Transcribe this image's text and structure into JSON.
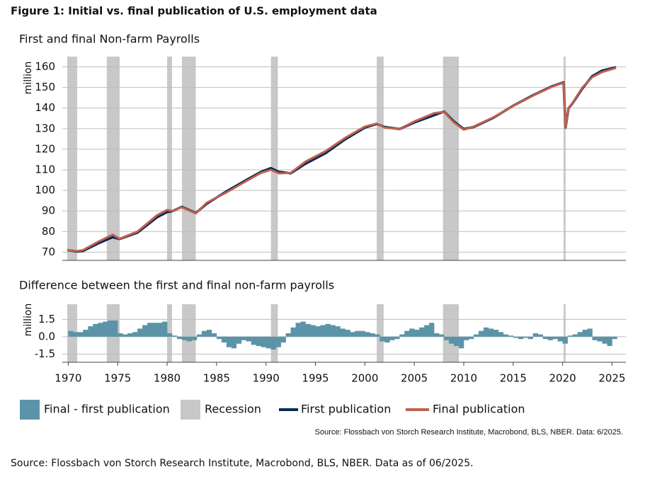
{
  "title": "Figure 1: Initial vs. final publication of U.S. employment data",
  "recessions": {
    "name": "Recession",
    "color": "#c8c8c8",
    "periods": [
      [
        1969.9,
        1970.9
      ],
      [
        1973.9,
        1975.2
      ],
      [
        1980.0,
        1980.5
      ],
      [
        1981.5,
        1982.9
      ],
      [
        1990.5,
        1991.2
      ],
      [
        2001.2,
        2001.9
      ],
      [
        2007.9,
        2009.5
      ],
      [
        2020.1,
        2020.3
      ]
    ]
  },
  "chart_data": [
    {
      "type": "line",
      "title": "First and final Non-farm Payrolls",
      "ylabel": "million",
      "x": [
        1969.9,
        1970.9,
        1971.5,
        1973,
        1974.5,
        1975.2,
        1977,
        1979,
        1980,
        1980.5,
        1981.5,
        1982.9,
        1984,
        1986,
        1988,
        1989.5,
        1990.5,
        1991.3,
        1992.5,
        1994,
        1996,
        1998,
        2000,
        2001.2,
        2002,
        2003.5,
        2005,
        2007,
        2008,
        2009,
        2010,
        2011,
        2013,
        2015,
        2017,
        2019,
        2020.1,
        2020.3,
        2020.6,
        2021,
        2022,
        2023,
        2024,
        2025.4
      ],
      "series": [
        {
          "name": "First publication",
          "color": "#0b2a55",
          "values": [
            71,
            70.3,
            70.6,
            74.2,
            77.3,
            76.4,
            79.5,
            87,
            89.5,
            89.9,
            92,
            89,
            93.5,
            99.5,
            105,
            109,
            110.8,
            109,
            108.3,
            113,
            118,
            124.8,
            130.5,
            132.3,
            130.8,
            129.8,
            133,
            136.5,
            138.3,
            133.5,
            129.8,
            130.8,
            135.3,
            141.1,
            146.2,
            150.7,
            152.5,
            130.5,
            139.9,
            142.3,
            149.5,
            155.5,
            158.2,
            159.8
          ]
        },
        {
          "name": "Final publication",
          "color": "#c0604f",
          "values": [
            71,
            70.5,
            71,
            75,
            78.5,
            76.5,
            80,
            88,
            90.5,
            90,
            91.8,
            88.8,
            94,
            99,
            104.5,
            108.5,
            110,
            108.3,
            108.5,
            114,
            119,
            125.5,
            131,
            132.5,
            130.5,
            129.8,
            133.5,
            137.5,
            138.2,
            133,
            129.5,
            131,
            135.5,
            141,
            146,
            150.5,
            152.3,
            130.5,
            140,
            142.5,
            150,
            155,
            157.5,
            159.5
          ]
        }
      ],
      "xlim": [
        1969.4,
        2026.4
      ],
      "ylim": [
        66,
        165
      ],
      "yticks": [
        70,
        80,
        90,
        100,
        110,
        120,
        130,
        140,
        150,
        160
      ],
      "grid": true
    },
    {
      "type": "bar",
      "title": "Difference between the first and final non-farm payrolls",
      "ylabel": "million",
      "x": [
        1970,
        1970.5,
        1971,
        1971.5,
        1972,
        1972.5,
        1973,
        1973.5,
        1974,
        1974.5,
        1975,
        1975.5,
        1976,
        1976.5,
        1977,
        1977.5,
        1978,
        1978.5,
        1979,
        1979.5,
        1980,
        1980.5,
        1981,
        1981.5,
        1982,
        1982.5,
        1983,
        1983.5,
        1984,
        1984.5,
        1985,
        1985.5,
        1986,
        1986.5,
        1987,
        1987.5,
        1988,
        1988.5,
        1989,
        1989.5,
        1990,
        1990.5,
        1991,
        1991.5,
        1992,
        1992.5,
        1993,
        1993.5,
        1994,
        1994.5,
        1995,
        1995.5,
        1996,
        1996.5,
        1997,
        1997.5,
        1998,
        1998.5,
        1999,
        1999.5,
        2000,
        2000.5,
        2001,
        2001.5,
        2002,
        2002.5,
        2003,
        2003.5,
        2004,
        2004.5,
        2005,
        2005.5,
        2006,
        2006.5,
        2007,
        2007.5,
        2008,
        2008.5,
        2009,
        2009.5,
        2010,
        2010.5,
        2011,
        2011.5,
        2012,
        2012.5,
        2013,
        2013.5,
        2014,
        2014.5,
        2015,
        2015.5,
        2016,
        2016.5,
        2017,
        2017.5,
        2018,
        2018.5,
        2019,
        2019.5,
        2020,
        2020.5,
        2021,
        2021.5,
        2022,
        2022.5,
        2023,
        2023.5,
        2024,
        2024.5,
        2025
      ],
      "series": [
        {
          "name": "Final - first publication",
          "color": "#5b94a8",
          "values": [
            0.5,
            0.4,
            0.4,
            0.6,
            0.9,
            1.1,
            1.2,
            1.3,
            1.4,
            1.4,
            0.3,
            0.2,
            0.3,
            0.4,
            0.7,
            1.0,
            1.2,
            1.2,
            1.2,
            1.3,
            0.3,
            0.1,
            -0.2,
            -0.3,
            -0.4,
            -0.3,
            0.2,
            0.5,
            0.6,
            0.3,
            -0.2,
            -0.5,
            -0.9,
            -1.0,
            -0.6,
            -0.3,
            -0.4,
            -0.7,
            -0.8,
            -0.9,
            -1.0,
            -1.1,
            -0.9,
            -0.5,
            0.3,
            0.8,
            1.2,
            1.3,
            1.1,
            1.0,
            0.9,
            1.0,
            1.1,
            1.0,
            0.9,
            0.7,
            0.6,
            0.4,
            0.5,
            0.5,
            0.4,
            0.3,
            0.2,
            -0.4,
            -0.5,
            -0.3,
            -0.2,
            0.2,
            0.5,
            0.7,
            0.6,
            0.8,
            1.0,
            1.2,
            0.3,
            0.2,
            -0.3,
            -0.6,
            -0.8,
            -1.0,
            -0.3,
            -0.2,
            0.2,
            0.5,
            0.8,
            0.7,
            0.6,
            0.4,
            0.2,
            0.1,
            -0.1,
            -0.2,
            -0.1,
            -0.2,
            0.3,
            0.2,
            -0.2,
            -0.3,
            -0.2,
            -0.4,
            -0.6,
            0.1,
            0.2,
            0.4,
            0.6,
            0.7,
            -0.3,
            -0.4,
            -0.6,
            -0.8,
            -0.2
          ]
        }
      ],
      "xlim": [
        1969.4,
        2026.4
      ],
      "ylim": [
        -2.2,
        2.8
      ],
      "yticks": [
        -1.5,
        {
          "value": 0,
          "label": "0.0"
        },
        1.5
      ],
      "xticks": [
        1970,
        1975,
        1980,
        1985,
        1990,
        1995,
        2000,
        2005,
        2010,
        2015,
        2020,
        2025
      ],
      "grid": true
    }
  ],
  "source_note": "Source: Flossbach von Storch Research Institute, Macrobond, BLS, NBER. Data: 6/2025.",
  "footer": "Source: Flossbach von Storch Research Institute, Macrobond, BLS, NBER. Data as of 06/2025."
}
